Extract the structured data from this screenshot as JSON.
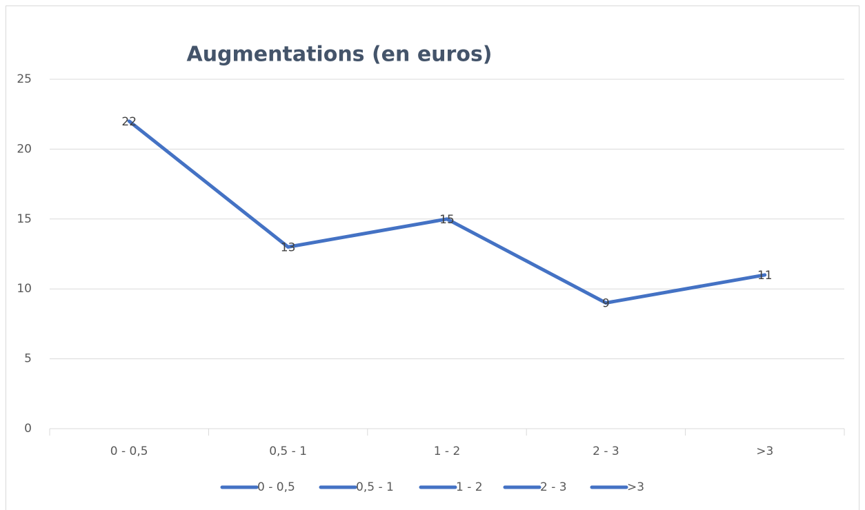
{
  "chart_data": {
    "type": "line",
    "title": "Augmentations (en euros)",
    "categories": [
      "0 - 0,5",
      "0,5 - 1",
      "1 - 2",
      "2 - 3",
      ">3"
    ],
    "values": [
      22,
      13,
      15,
      9,
      11
    ],
    "color": "#4472c4",
    "ylim": [
      0,
      25
    ],
    "yticks": [
      0,
      5,
      10,
      15,
      20,
      25
    ],
    "grid": true,
    "legend": "bottom",
    "data_labels": true
  }
}
